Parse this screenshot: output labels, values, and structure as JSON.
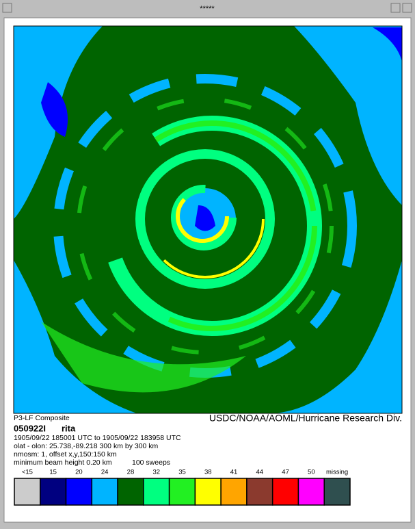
{
  "window": {
    "title": "*****"
  },
  "caption": {
    "left": "P3-LF Composite",
    "right": "USDC/NOAA/AOML/Hurricane Research Div."
  },
  "info": {
    "id": "050922I",
    "storm": "rita",
    "time": "1905/09/22 185001 UTC to 1905/09/22 183958 UTC",
    "origin": "olat - olon: 25.738,-89.218  300 km by 300 km",
    "offset": "nmosm: 1, offset x,y,150:150 km",
    "beam": "minimum beam height 0.20 km",
    "sweeps": "100 sweeps"
  },
  "legend": {
    "items": [
      {
        "label": "<15",
        "color": "#cccccc"
      },
      {
        "label": "15",
        "color": "#000080"
      },
      {
        "label": "20",
        "color": "#0000ff"
      },
      {
        "label": "24",
        "color": "#00b4ff"
      },
      {
        "label": "28",
        "color": "#006400"
      },
      {
        "label": "32",
        "color": "#00ff80"
      },
      {
        "label": "35",
        "color": "#22f022"
      },
      {
        "label": "38",
        "color": "#ffff00"
      },
      {
        "label": "41",
        "color": "#ffa500"
      },
      {
        "label": "44",
        "color": "#8b3a2e"
      },
      {
        "label": "47",
        "color": "#ff0000"
      },
      {
        "label": "50",
        "color": "#ff00ff"
      },
      {
        "label": "missing",
        "color": "#2f4f4f"
      }
    ]
  }
}
